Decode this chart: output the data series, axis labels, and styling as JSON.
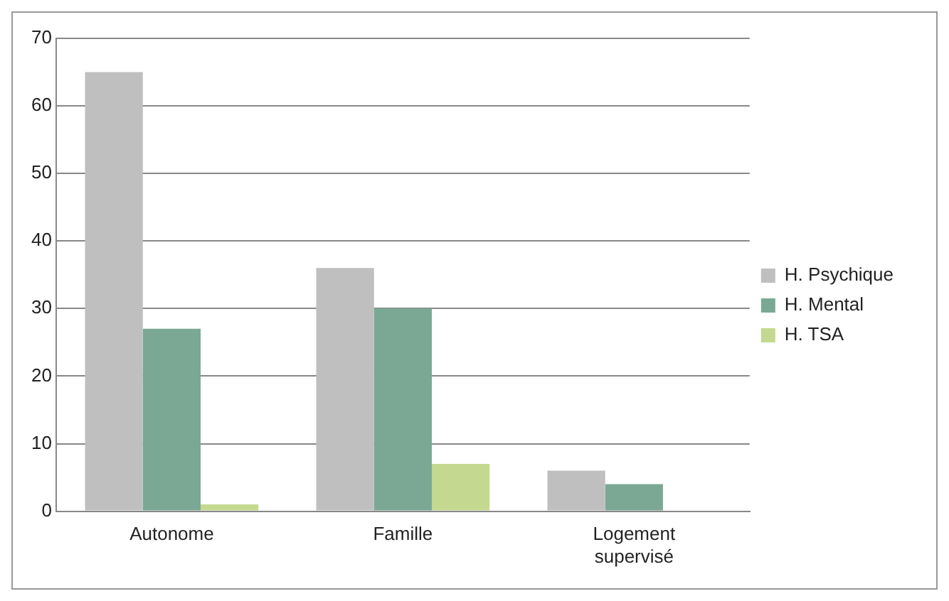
{
  "chart_data": {
    "type": "bar",
    "categories": [
      "Autonome",
      "Famille",
      "Logement supervisé"
    ],
    "series": [
      {
        "name": "H. Psychique",
        "color": "#bfbfbf",
        "values": [
          65,
          36,
          6
        ]
      },
      {
        "name": "H. Mental",
        "color": "#7aa894",
        "values": [
          27,
          30,
          4
        ]
      },
      {
        "name": "H. TSA",
        "color": "#c4d98f",
        "values": [
          1,
          7,
          0
        ]
      }
    ],
    "ylim": [
      0,
      70
    ],
    "yticks": [
      0,
      10,
      20,
      30,
      40,
      50,
      60,
      70
    ],
    "grid": "y",
    "legend": "right"
  }
}
